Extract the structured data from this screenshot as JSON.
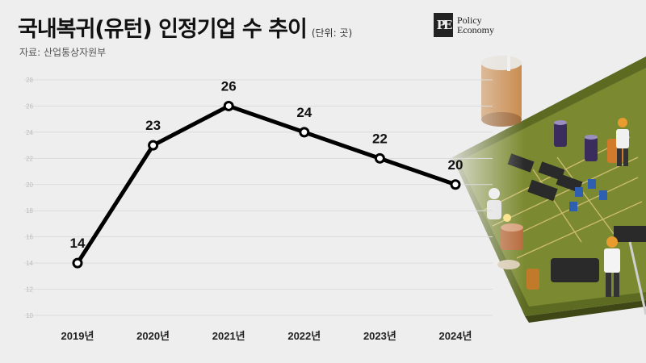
{
  "header": {
    "title": "국내복귀(유턴) 인정기업 수 추이",
    "unit": "(단위: 곳)",
    "source": "자료: 산업통상자원부"
  },
  "logo": {
    "mark": "PE",
    "line1": "Policy",
    "line2": "Economy"
  },
  "illustration": {
    "icon": "circuit-board-with-workers-illustration"
  },
  "chart_data": {
    "type": "line",
    "categories": [
      "2019년",
      "2020년",
      "2021년",
      "2022년",
      "2023년",
      "2024년"
    ],
    "series": [
      {
        "values": [
          14,
          23,
          26,
          24,
          22,
          20
        ]
      }
    ],
    "data_labels": [
      "14",
      "23",
      "26",
      "24",
      "22",
      "20"
    ],
    "yticks": [
      10,
      12,
      14,
      16,
      18,
      20,
      22,
      24,
      26,
      28
    ],
    "ylim": [
      10,
      28
    ],
    "grid": true,
    "line_color": "#000000",
    "marker_fill": "#ffffff"
  }
}
